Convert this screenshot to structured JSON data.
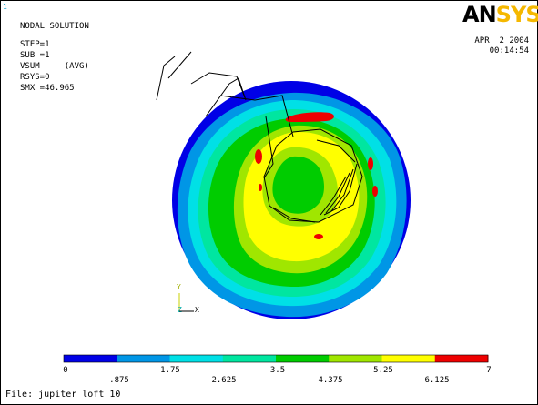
{
  "window_number": "1",
  "header": {
    "title": "NODAL SOLUTION",
    "step": "STEP=1",
    "sub": "SUB =1",
    "vsum": "VSUM     (AVG)",
    "rsys": "RSYS=0",
    "smx": "SMX =46.965"
  },
  "logo": {
    "an": "AN",
    "sys": "SYS"
  },
  "datetime": {
    "date": "APR  2 2004",
    "time": "00:14:54"
  },
  "axis_triad": {
    "y": "Y",
    "z": "Z",
    "x": "X"
  },
  "legend": {
    "ticks_top": [
      "0",
      "1.75",
      "3.5",
      "5.25",
      "7"
    ],
    "ticks_bottom": [
      ".875",
      "2.625",
      "4.375",
      "6.125"
    ],
    "colors": [
      "#0000e6",
      "#0096e6",
      "#00e0e6",
      "#00e6a0",
      "#00cc00",
      "#a0e600",
      "#ffff00",
      "#ff9900",
      "#ee0000"
    ],
    "bands": [
      {
        "color": "#0000e6"
      },
      {
        "color": "#0096e6"
      },
      {
        "color": "#00e0e6"
      },
      {
        "color": "#00e6a0"
      },
      {
        "color": "#00cc00"
      },
      {
        "color": "#a0e600"
      },
      {
        "color": "#ffff00"
      },
      {
        "color": "#ee0000"
      }
    ]
  },
  "footer": {
    "file": "File: jupiter loft 10"
  }
}
